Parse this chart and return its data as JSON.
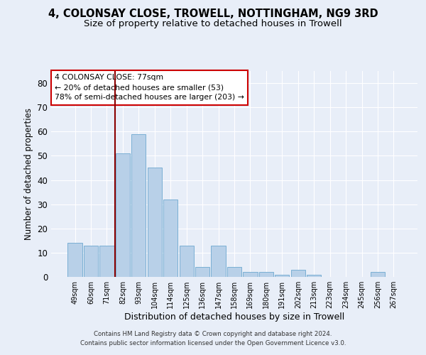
{
  "title": "4, COLONSAY CLOSE, TROWELL, NOTTINGHAM, NG9 3RD",
  "subtitle": "Size of property relative to detached houses in Trowell",
  "xlabel": "Distribution of detached houses by size in Trowell",
  "ylabel": "Number of detached properties",
  "categories": [
    "49sqm",
    "60sqm",
    "71sqm",
    "82sqm",
    "93sqm",
    "104sqm",
    "114sqm",
    "125sqm",
    "136sqm",
    "147sqm",
    "158sqm",
    "169sqm",
    "180sqm",
    "191sqm",
    "202sqm",
    "213sqm",
    "223sqm",
    "234sqm",
    "245sqm",
    "256sqm",
    "267sqm"
  ],
  "values": [
    14,
    13,
    13,
    51,
    59,
    45,
    32,
    13,
    4,
    13,
    4,
    2,
    2,
    1,
    3,
    1,
    0,
    0,
    0,
    2,
    0
  ],
  "bar_color": "#b8d0e8",
  "bar_edge_color": "#7aafd4",
  "vline_color": "#8b0000",
  "annotation_text": "4 COLONSAY CLOSE: 77sqm\n← 20% of detached houses are smaller (53)\n78% of semi-detached houses are larger (203) →",
  "annotation_box_color": "white",
  "annotation_box_edge": "#cc0000",
  "ylim": [
    0,
    85
  ],
  "yticks": [
    0,
    10,
    20,
    30,
    40,
    50,
    60,
    70,
    80
  ],
  "footer1": "Contains HM Land Registry data © Crown copyright and database right 2024.",
  "footer2": "Contains public sector information licensed under the Open Government Licence v3.0.",
  "bg_color": "#e8eef8",
  "title_fontsize": 10.5,
  "subtitle_fontsize": 9.5
}
